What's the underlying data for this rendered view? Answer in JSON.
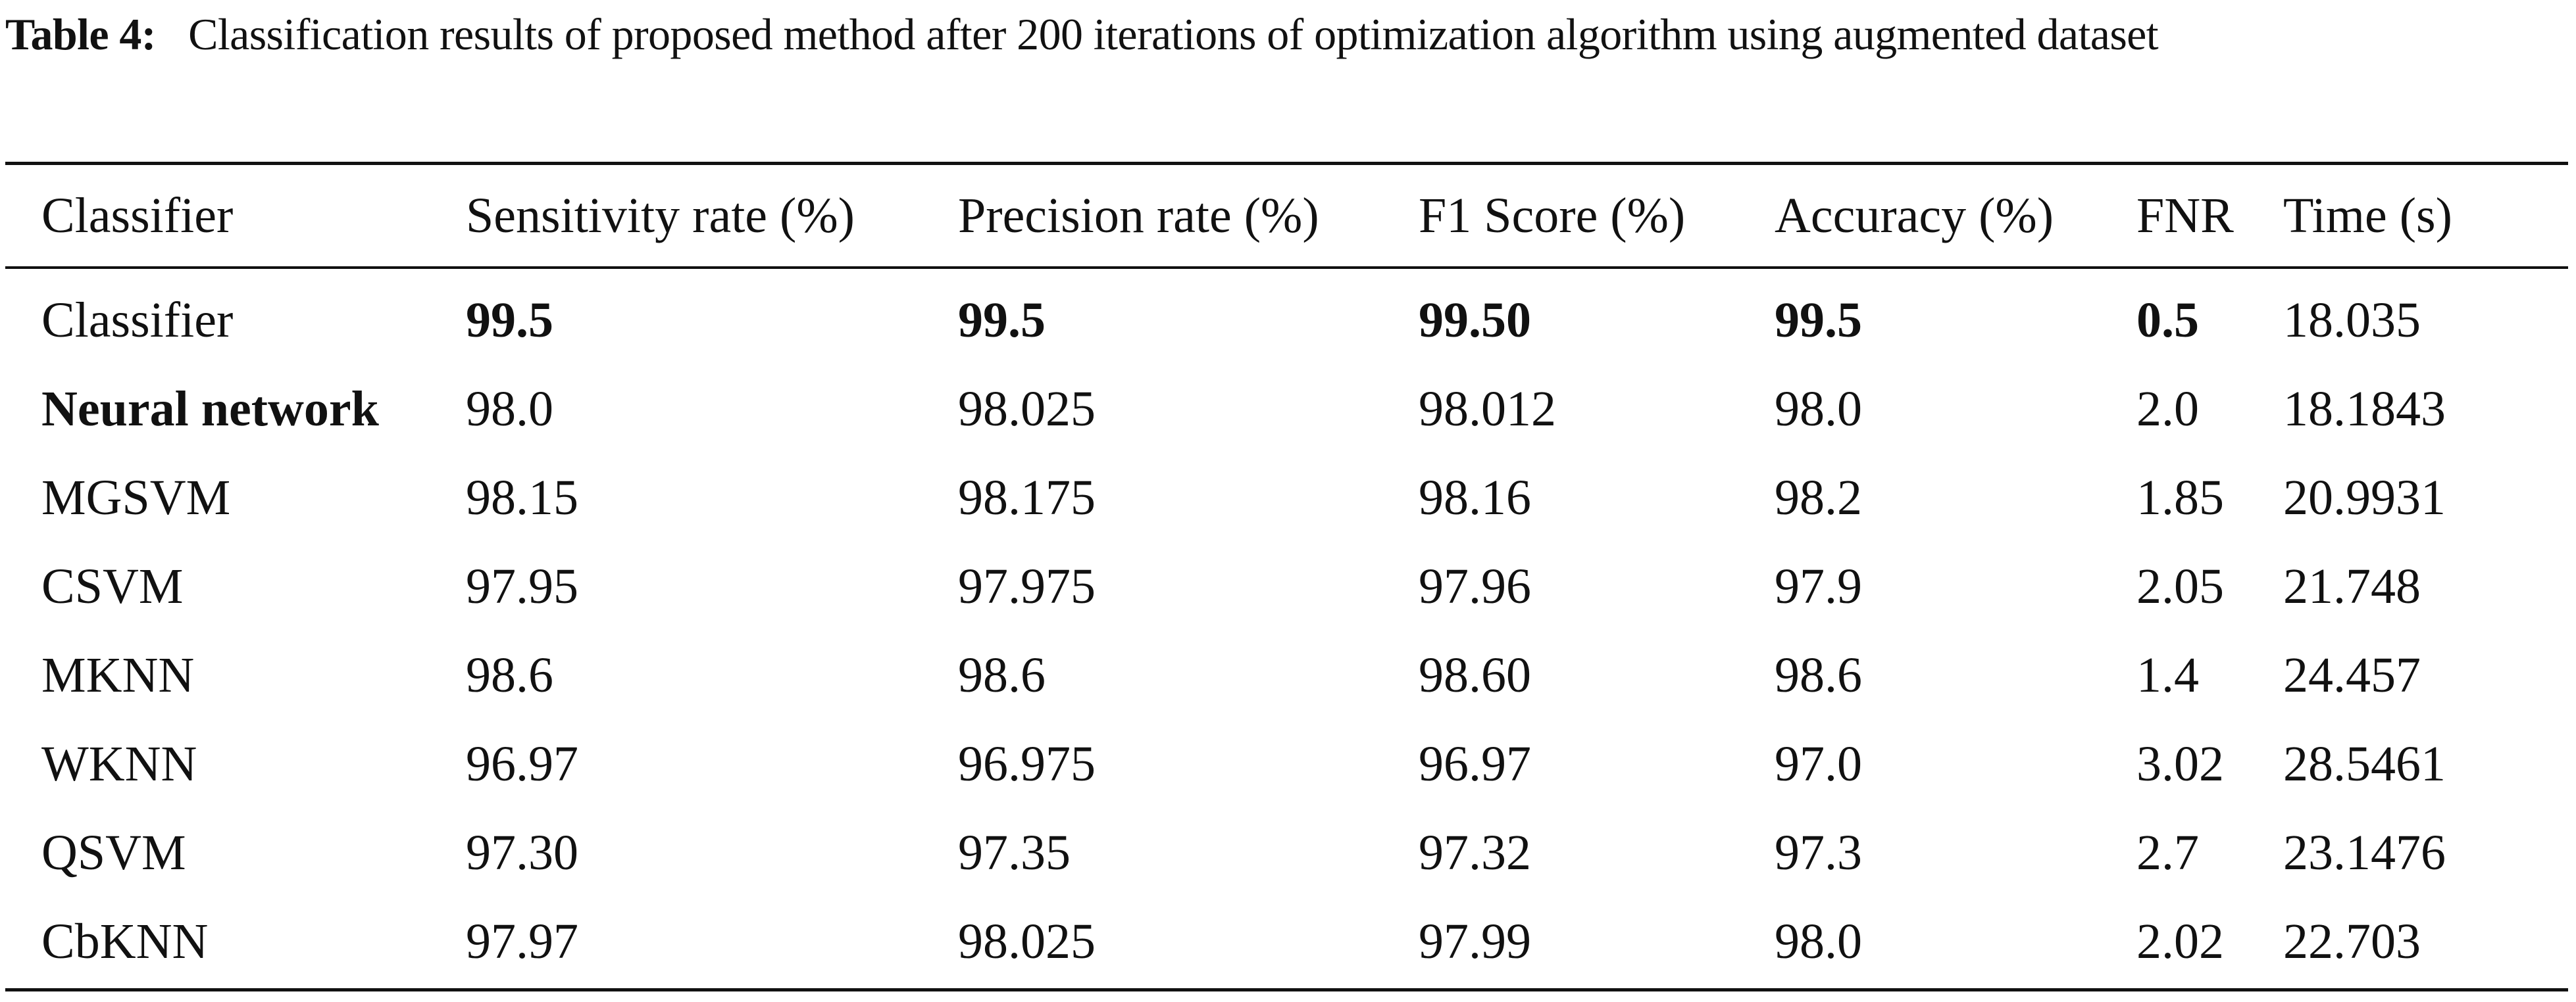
{
  "caption": {
    "label": "Table 4:",
    "text": "Classification results of proposed method after 200 iterations of optimization algorithm using augmented dataset"
  },
  "table": {
    "headers": [
      "Classifier",
      "Sensitivity rate (%)",
      "Precision rate (%)",
      "F1 Score (%)",
      "Accuracy (%)",
      "FNR",
      "Time (s)"
    ],
    "rows": [
      [
        "Classifier",
        "99.5",
        "99.5",
        "99.50",
        "99.5",
        "0.5",
        "18.035"
      ],
      [
        "Neural network",
        "98.0",
        "98.025",
        "98.012",
        "98.0",
        "2.0",
        "18.1843"
      ],
      [
        "MGSVM",
        "98.15",
        "98.175",
        "98.16",
        "98.2",
        "1.85",
        "20.9931"
      ],
      [
        "CSVM",
        "97.95",
        "97.975",
        "97.96",
        "97.9",
        "2.05",
        "21.748"
      ],
      [
        "MKNN",
        "98.6",
        "98.6",
        "98.60",
        "98.6",
        "1.4",
        "24.457"
      ],
      [
        "WKNN",
        "96.97",
        "96.975",
        "96.97",
        "97.0",
        "3.02",
        "28.5461"
      ],
      [
        "QSVM",
        "97.30",
        "97.35",
        "97.32",
        "97.3",
        "2.7",
        "23.1476"
      ],
      [
        "CbKNN",
        "97.97",
        "98.025",
        "97.99",
        "98.0",
        "2.02",
        "22.703"
      ]
    ]
  }
}
